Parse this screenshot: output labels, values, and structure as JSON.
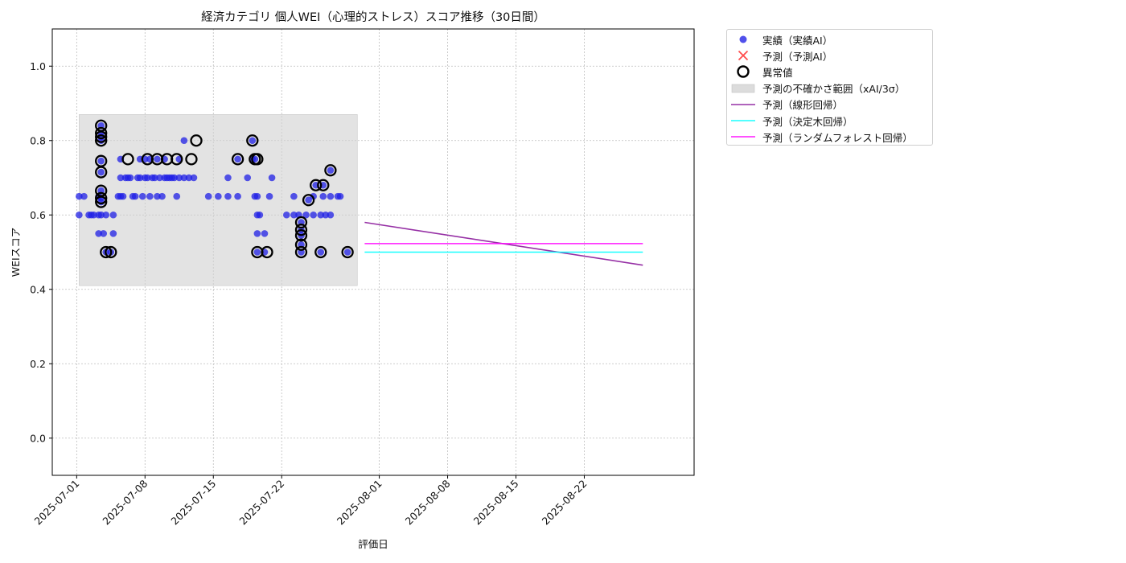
{
  "chart_data": {
    "type": "scatter",
    "title": "経済カテゴリ 個人WEI（心理的ストレス）スコア推移（30日間）",
    "xlabel": "評価日",
    "ylabel": "WEIスコア",
    "xlim": [
      "2025-06-28T12:00",
      "2025-09-02T06:00"
    ],
    "ylim": [
      -0.1,
      1.1
    ],
    "grid": true,
    "legend_position": "outside-top-right",
    "x_ticks": [
      "2025-07-01",
      "2025-07-08",
      "2025-07-15",
      "2025-07-22",
      "2025-08-01",
      "2025-08-08",
      "2025-08-15",
      "2025-08-22"
    ],
    "y_ticks": [
      "0.0",
      "0.2",
      "0.4",
      "0.6",
      "0.8",
      "1.0"
    ],
    "colors": {
      "actual": "#1f1fe6",
      "predicted": "#ff2020",
      "anomaly_edge": "#000000",
      "uncertainty": "#d0d0d0",
      "linear": "#8b1a9b",
      "tree": "#00ffff",
      "forest": "#ff00ff"
    },
    "legend": [
      {
        "key": "actual",
        "label": "実績（実績AI）"
      },
      {
        "key": "predicted",
        "label": "予測（予測AI）"
      },
      {
        "key": "anomaly",
        "label": "異常値"
      },
      {
        "key": "band",
        "label": "予測の不確かさ範囲（xAI/3σ）"
      },
      {
        "key": "linear",
        "label": "予測（線形回帰）"
      },
      {
        "key": "tree",
        "label": "予測（決定木回帰）"
      },
      {
        "key": "forest",
        "label": "予測（ランダムフォレスト回帰）"
      }
    ],
    "series": [
      {
        "name": "実績（実績AI）",
        "kind": "scatter",
        "points": [
          [
            "2025-07-01T06:00",
            0.6
          ],
          [
            "2025-07-01T06:00",
            0.65
          ],
          [
            "2025-07-01T18:00",
            0.65
          ],
          [
            "2025-07-02T06:00",
            0.6
          ],
          [
            "2025-07-02T12:00",
            0.6
          ],
          [
            "2025-07-02T18:00",
            0.6
          ],
          [
            "2025-07-03T06:00",
            0.6
          ],
          [
            "2025-07-03T06:00",
            0.55
          ],
          [
            "2025-07-03T06:00",
            0.65
          ],
          [
            "2025-07-03T12:00",
            0.84
          ],
          [
            "2025-07-03T12:00",
            0.82
          ],
          [
            "2025-07-03T12:00",
            0.81
          ],
          [
            "2025-07-03T12:00",
            0.8
          ],
          [
            "2025-07-03T12:00",
            0.745
          ],
          [
            "2025-07-03T12:00",
            0.715
          ],
          [
            "2025-07-03T12:00",
            0.665
          ],
          [
            "2025-07-03T12:00",
            0.645
          ],
          [
            "2025-07-03T12:00",
            0.635
          ],
          [
            "2025-07-03T12:00",
            0.6
          ],
          [
            "2025-07-03T18:00",
            0.55
          ],
          [
            "2025-07-04T00:00",
            0.5
          ],
          [
            "2025-07-04T00:00",
            0.6
          ],
          [
            "2025-07-04T12:00",
            0.5
          ],
          [
            "2025-07-04T18:00",
            0.6
          ],
          [
            "2025-07-04T18:00",
            0.55
          ],
          [
            "2025-07-05T06:00",
            0.65
          ],
          [
            "2025-07-05T12:00",
            0.65
          ],
          [
            "2025-07-05T12:00",
            0.75
          ],
          [
            "2025-07-05T12:00",
            0.7
          ],
          [
            "2025-07-05T18:00",
            0.65
          ],
          [
            "2025-07-06T00:00",
            0.7
          ],
          [
            "2025-07-06T06:00",
            0.7
          ],
          [
            "2025-07-06T12:00",
            0.7
          ],
          [
            "2025-07-06T18:00",
            0.65
          ],
          [
            "2025-07-07T00:00",
            0.65
          ],
          [
            "2025-07-07T06:00",
            0.7
          ],
          [
            "2025-07-07T12:00",
            0.75
          ],
          [
            "2025-07-07T12:00",
            0.7
          ],
          [
            "2025-07-07T18:00",
            0.65
          ],
          [
            "2025-07-08T00:00",
            0.75
          ],
          [
            "2025-07-08T00:00",
            0.7
          ],
          [
            "2025-07-08T06:00",
            0.7
          ],
          [
            "2025-07-08T12:00",
            0.75
          ],
          [
            "2025-07-08T12:00",
            0.65
          ],
          [
            "2025-07-08T18:00",
            0.7
          ],
          [
            "2025-07-09T00:00",
            0.7
          ],
          [
            "2025-07-09T06:00",
            0.75
          ],
          [
            "2025-07-09T06:00",
            0.65
          ],
          [
            "2025-07-09T12:00",
            0.7
          ],
          [
            "2025-07-09T18:00",
            0.65
          ],
          [
            "2025-07-10T00:00",
            0.75
          ],
          [
            "2025-07-10T00:00",
            0.7
          ],
          [
            "2025-07-10T06:00",
            0.7
          ],
          [
            "2025-07-10T12:00",
            0.7
          ],
          [
            "2025-07-10T18:00",
            0.7
          ],
          [
            "2025-07-11T00:00",
            0.7
          ],
          [
            "2025-07-11T06:00",
            0.65
          ],
          [
            "2025-07-11T12:00",
            0.75
          ],
          [
            "2025-07-11T12:00",
            0.7
          ],
          [
            "2025-07-12T00:00",
            0.8
          ],
          [
            "2025-07-12T00:00",
            0.7
          ],
          [
            "2025-07-12T12:00",
            0.7
          ],
          [
            "2025-07-13T00:00",
            0.7
          ],
          [
            "2025-07-14T12:00",
            0.65
          ],
          [
            "2025-07-15T12:00",
            0.65
          ],
          [
            "2025-07-16T12:00",
            0.7
          ],
          [
            "2025-07-16T12:00",
            0.65
          ],
          [
            "2025-07-17T12:00",
            0.75
          ],
          [
            "2025-07-17T12:00",
            0.65
          ],
          [
            "2025-07-18T12:00",
            0.7
          ],
          [
            "2025-07-19T00:00",
            0.8
          ],
          [
            "2025-07-19T00:00",
            0.75
          ],
          [
            "2025-07-19T06:00",
            0.75
          ],
          [
            "2025-07-19T06:00",
            0.65
          ],
          [
            "2025-07-19T12:00",
            0.65
          ],
          [
            "2025-07-19T12:00",
            0.6
          ],
          [
            "2025-07-19T12:00",
            0.55
          ],
          [
            "2025-07-19T12:00",
            0.5
          ],
          [
            "2025-07-19T18:00",
            0.6
          ],
          [
            "2025-07-20T06:00",
            0.55
          ],
          [
            "2025-07-20T06:00",
            0.5
          ],
          [
            "2025-07-20T18:00",
            0.65
          ],
          [
            "2025-07-21T00:00",
            0.7
          ],
          [
            "2025-07-22T12:00",
            0.6
          ],
          [
            "2025-07-23T06:00",
            0.65
          ],
          [
            "2025-07-23T06:00",
            0.6
          ],
          [
            "2025-07-23T18:00",
            0.6
          ],
          [
            "2025-07-24T00:00",
            0.58
          ],
          [
            "2025-07-24T00:00",
            0.56
          ],
          [
            "2025-07-24T00:00",
            0.545
          ],
          [
            "2025-07-24T00:00",
            0.52
          ],
          [
            "2025-07-24T00:00",
            0.5
          ],
          [
            "2025-07-24T12:00",
            0.6
          ],
          [
            "2025-07-24T18:00",
            0.64
          ],
          [
            "2025-07-25T06:00",
            0.6
          ],
          [
            "2025-07-25T06:00",
            0.65
          ],
          [
            "2025-07-25T12:00",
            0.68
          ],
          [
            "2025-07-26T00:00",
            0.5
          ],
          [
            "2025-07-26T00:00",
            0.6
          ],
          [
            "2025-07-26T06:00",
            0.65
          ],
          [
            "2025-07-26T06:00",
            0.68
          ],
          [
            "2025-07-26T12:00",
            0.6
          ],
          [
            "2025-07-27T00:00",
            0.72
          ],
          [
            "2025-07-27T00:00",
            0.65
          ],
          [
            "2025-07-27T00:00",
            0.6
          ],
          [
            "2025-07-27T18:00",
            0.65
          ],
          [
            "2025-07-28T00:00",
            0.65
          ],
          [
            "2025-07-28T18:00",
            0.5
          ]
        ]
      },
      {
        "name": "異常値",
        "kind": "anomaly",
        "points": [
          [
            "2025-07-03T12:00",
            0.84
          ],
          [
            "2025-07-03T12:00",
            0.82
          ],
          [
            "2025-07-03T12:00",
            0.81
          ],
          [
            "2025-07-03T12:00",
            0.8
          ],
          [
            "2025-07-03T12:00",
            0.745
          ],
          [
            "2025-07-03T12:00",
            0.715
          ],
          [
            "2025-07-03T12:00",
            0.665
          ],
          [
            "2025-07-03T12:00",
            0.645
          ],
          [
            "2025-07-03T12:00",
            0.635
          ],
          [
            "2025-07-04T00:00",
            0.5
          ],
          [
            "2025-07-04T12:00",
            0.5
          ],
          [
            "2025-07-06T06:00",
            0.75
          ],
          [
            "2025-07-08T06:00",
            0.75
          ],
          [
            "2025-07-09T06:00",
            0.75
          ],
          [
            "2025-07-10T06:00",
            0.75
          ],
          [
            "2025-07-11T06:00",
            0.75
          ],
          [
            "2025-07-12T18:00",
            0.75
          ],
          [
            "2025-07-13T06:00",
            0.8
          ],
          [
            "2025-07-17T12:00",
            0.75
          ],
          [
            "2025-07-19T00:00",
            0.8
          ],
          [
            "2025-07-19T06:00",
            0.75
          ],
          [
            "2025-07-19T12:00",
            0.75
          ],
          [
            "2025-07-19T12:00",
            0.5
          ],
          [
            "2025-07-20T12:00",
            0.5
          ],
          [
            "2025-07-24T00:00",
            0.58
          ],
          [
            "2025-07-24T00:00",
            0.56
          ],
          [
            "2025-07-24T00:00",
            0.545
          ],
          [
            "2025-07-24T00:00",
            0.52
          ],
          [
            "2025-07-24T00:00",
            0.5
          ],
          [
            "2025-07-24T18:00",
            0.64
          ],
          [
            "2025-07-25T12:00",
            0.68
          ],
          [
            "2025-07-26T00:00",
            0.5
          ],
          [
            "2025-07-26T06:00",
            0.68
          ],
          [
            "2025-07-27T00:00",
            0.72
          ],
          [
            "2025-07-28T18:00",
            0.5
          ]
        ]
      },
      {
        "name": "予測の不確かさ範囲（xAI/3σ）",
        "kind": "band",
        "x": [
          "2025-07-01T06:00",
          "2025-07-29T18:00"
        ],
        "y": [
          0.41,
          0.87
        ]
      },
      {
        "name": "予測（線形回帰）",
        "kind": "line",
        "points": [
          [
            "2025-07-30T12:00",
            0.58
          ],
          [
            "2025-08-28T00:00",
            0.465
          ]
        ]
      },
      {
        "name": "予測（決定木回帰）",
        "kind": "line",
        "points": [
          [
            "2025-07-30T12:00",
            0.5
          ],
          [
            "2025-08-28T00:00",
            0.5
          ]
        ]
      },
      {
        "name": "予測（ランダムフォレスト回帰）",
        "kind": "line",
        "points": [
          [
            "2025-07-30T12:00",
            0.523
          ],
          [
            "2025-08-28T00:00",
            0.523
          ]
        ]
      }
    ]
  }
}
